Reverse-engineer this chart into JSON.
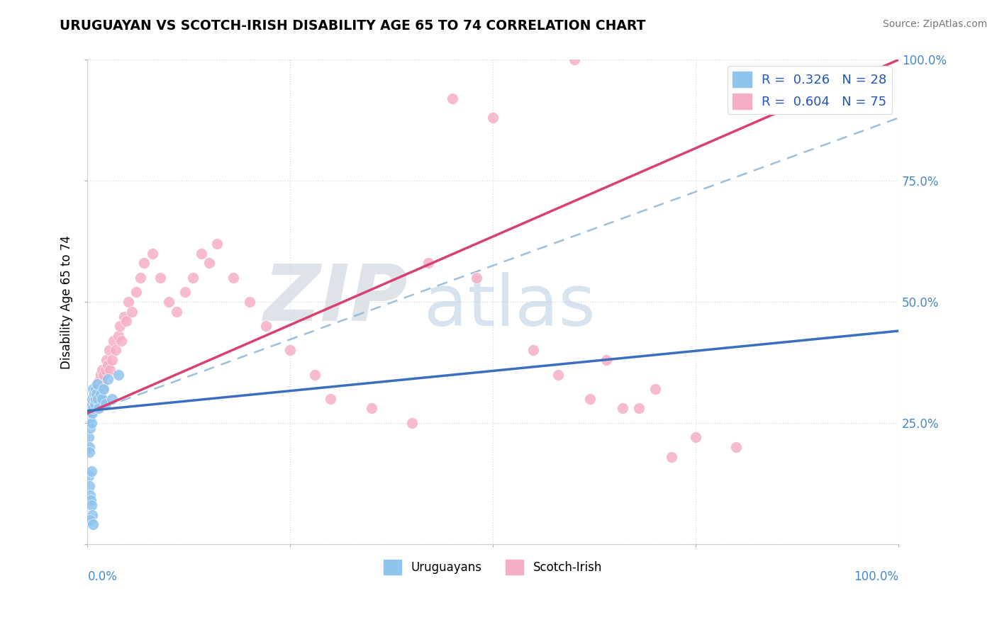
{
  "title": "URUGUAYAN VS SCOTCH-IRISH DISABILITY AGE 65 TO 74 CORRELATION CHART",
  "source": "Source: ZipAtlas.com",
  "ylabel": "Disability Age 65 to 74",
  "right_yticks": [
    "25.0%",
    "50.0%",
    "75.0%",
    "100.0%"
  ],
  "right_ytick_vals": [
    0.25,
    0.5,
    0.75,
    1.0
  ],
  "watermark_zip": "ZIP",
  "watermark_atlas": "atlas",
  "legend_blue_label": "R =  0.326   N = 28",
  "legend_pink_label": "R =  0.604   N = 75",
  "legend_uruguayan": "Uruguayans",
  "legend_scotch": "Scotch-Irish",
  "blue_color": "#8fc4ed",
  "pink_color": "#f5afc4",
  "blue_line_color": "#3a6fbf",
  "pink_line_color": "#d94070",
  "dashed_line_color": "#8ab4d8",
  "grid_color": "#c8d8ea",
  "label_color": "#4488cc",
  "pink_line_x0": 0.0,
  "pink_line_y0": 0.27,
  "pink_line_x1": 1.0,
  "pink_line_y1": 1.0,
  "blue_line_x0": 0.0,
  "blue_line_y0": 0.275,
  "blue_line_x1": 1.0,
  "blue_line_y1": 0.44,
  "dash_line_x0": 0.0,
  "dash_line_y0": 0.27,
  "dash_line_x1": 1.0,
  "dash_line_y1": 0.88,
  "uruguayan_x": [
    0.001,
    0.002,
    0.003,
    0.003,
    0.004,
    0.004,
    0.005,
    0.005,
    0.006,
    0.006,
    0.007,
    0.007,
    0.008,
    0.008,
    0.009,
    0.01,
    0.01,
    0.011,
    0.012,
    0.013,
    0.014,
    0.016,
    0.018,
    0.02,
    0.022,
    0.025,
    0.03,
    0.038
  ],
  "uruguayan_y": [
    0.22,
    0.2,
    0.24,
    0.26,
    0.27,
    0.28,
    0.25,
    0.29,
    0.27,
    0.3,
    0.28,
    0.32,
    0.3,
    0.31,
    0.29,
    0.3,
    0.32,
    0.31,
    0.33,
    0.3,
    0.28,
    0.31,
    0.3,
    0.32,
    0.29,
    0.34,
    0.3,
    0.35
  ],
  "scotch_x": [
    0.001,
    0.002,
    0.003,
    0.004,
    0.005,
    0.005,
    0.006,
    0.007,
    0.007,
    0.008,
    0.008,
    0.009,
    0.01,
    0.01,
    0.011,
    0.012,
    0.013,
    0.014,
    0.015,
    0.015,
    0.016,
    0.018,
    0.018,
    0.019,
    0.02,
    0.022,
    0.023,
    0.025,
    0.027,
    0.028,
    0.03,
    0.032,
    0.035,
    0.038,
    0.04,
    0.042,
    0.045,
    0.048,
    0.05,
    0.055,
    0.06,
    0.065,
    0.07,
    0.08,
    0.09,
    0.1,
    0.11,
    0.12,
    0.13,
    0.14,
    0.15,
    0.16,
    0.18,
    0.2,
    0.22,
    0.25,
    0.28,
    0.3,
    0.35,
    0.4,
    0.42,
    0.45,
    0.48,
    0.5,
    0.55,
    0.58,
    0.6,
    0.62,
    0.64,
    0.66,
    0.68,
    0.7,
    0.72,
    0.75,
    0.8
  ],
  "scotch_y": [
    0.28,
    0.27,
    0.29,
    0.28,
    0.3,
    0.27,
    0.29,
    0.28,
    0.3,
    0.29,
    0.31,
    0.3,
    0.32,
    0.28,
    0.31,
    0.3,
    0.33,
    0.32,
    0.34,
    0.3,
    0.35,
    0.33,
    0.36,
    0.32,
    0.35,
    0.36,
    0.38,
    0.37,
    0.4,
    0.36,
    0.38,
    0.42,
    0.4,
    0.43,
    0.45,
    0.42,
    0.47,
    0.46,
    0.5,
    0.48,
    0.52,
    0.55,
    0.58,
    0.6,
    0.55,
    0.5,
    0.48,
    0.52,
    0.55,
    0.6,
    0.58,
    0.62,
    0.55,
    0.5,
    0.45,
    0.4,
    0.35,
    0.3,
    0.28,
    0.25,
    0.58,
    0.92,
    0.55,
    0.88,
    0.4,
    0.35,
    1.0,
    0.3,
    0.38,
    0.28,
    0.28,
    0.32,
    0.18,
    0.22,
    0.2
  ],
  "extra_uru_x": [
    0.001,
    0.002,
    0.003,
    0.004,
    0.005,
    0.006,
    0.003,
    0.007,
    0.002,
    0.005
  ],
  "extra_uru_y": [
    0.14,
    0.12,
    0.1,
    0.09,
    0.08,
    0.06,
    0.05,
    0.04,
    0.19,
    0.15
  ],
  "xmin": 0.0,
  "xmax": 1.0,
  "ymin": 0.0,
  "ymax": 1.0
}
